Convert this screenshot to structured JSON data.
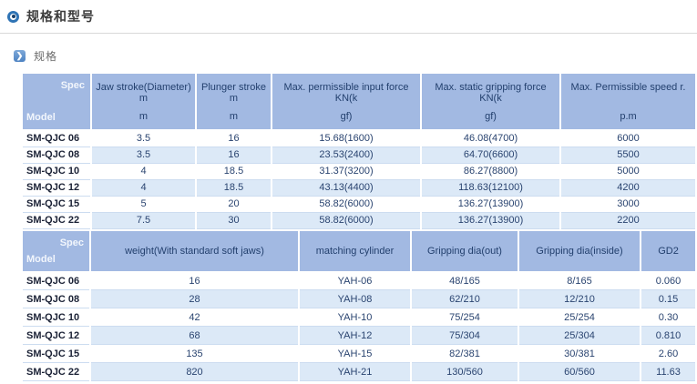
{
  "page": {
    "title": "规格和型号",
    "section_label": "规格"
  },
  "colors": {
    "header_bg": "#a2b9e2",
    "alt_row_bg": "#dce9f7",
    "header_text": "#23406e",
    "data_text": "#2a4470",
    "model_text": "#1b2236",
    "accent_blue": "#2f74b5"
  },
  "table1": {
    "corner": {
      "top": "Spec",
      "bottom": "Model"
    },
    "columns": [
      {
        "line1": "Jaw stroke(Diameter) m",
        "line2": "m"
      },
      {
        "line1": "Plunger stroke m",
        "line2": "m"
      },
      {
        "line1": "Max. permissible input force KN(k",
        "line2": "gf)"
      },
      {
        "line1": "Max. static gripping force KN(k",
        "line2": "gf)"
      },
      {
        "line1": "Max. Permissible speed r.",
        "line2": "p.m"
      }
    ],
    "rows": [
      {
        "model": "SM-QJC 06",
        "values": [
          "3.5",
          "16",
          "15.68(1600)",
          "46.08(4700)",
          "6000"
        ]
      },
      {
        "model": "SM-QJC 08",
        "values": [
          "3.5",
          "16",
          "23.53(2400)",
          "64.70(6600)",
          "5500"
        ]
      },
      {
        "model": "SM-QJC 10",
        "values": [
          "4",
          "18.5",
          "31.37(3200)",
          "86.27(8800)",
          "5000"
        ]
      },
      {
        "model": "SM-QJC 12",
        "values": [
          "4",
          "18.5",
          "43.13(4400)",
          "118.63(12100)",
          "4200"
        ]
      },
      {
        "model": "SM-QJC 15",
        "values": [
          "5",
          "20",
          "58.82(6000)",
          "136.27(13900)",
          "3000"
        ]
      },
      {
        "model": "SM-QJC 22",
        "values": [
          "7.5",
          "30",
          "58.82(6000)",
          "136.27(13900)",
          "2200"
        ]
      }
    ]
  },
  "table2": {
    "corner": {
      "top": "Spec",
      "bottom": "Model"
    },
    "columns": [
      "weight(With standard soft jaws)",
      "matching cylinder",
      "Gripping dia(out)",
      "Gripping dia(inside)",
      "GD2"
    ],
    "rows": [
      {
        "model": "SM-QJC 06",
        "values": [
          "16",
          "YAH-06",
          "48/165",
          "8/165",
          "0.060"
        ]
      },
      {
        "model": "SM-QJC 08",
        "values": [
          "28",
          "YAH-08",
          "62/210",
          "12/210",
          "0.15"
        ]
      },
      {
        "model": "SM-QJC 10",
        "values": [
          "42",
          "YAH-10",
          "75/254",
          "25/254",
          "0.30"
        ]
      },
      {
        "model": "SM-QJC 12",
        "values": [
          "68",
          "YAH-12",
          "75/304",
          "25/304",
          "0.810"
        ]
      },
      {
        "model": "SM-QJC 15",
        "values": [
          "135",
          "YAH-15",
          "82/381",
          "30/381",
          "2.60"
        ]
      },
      {
        "model": "SM-QJC 22",
        "values": [
          "820",
          "YAH-21",
          "130/560",
          "60/560",
          "11.63"
        ]
      }
    ]
  }
}
